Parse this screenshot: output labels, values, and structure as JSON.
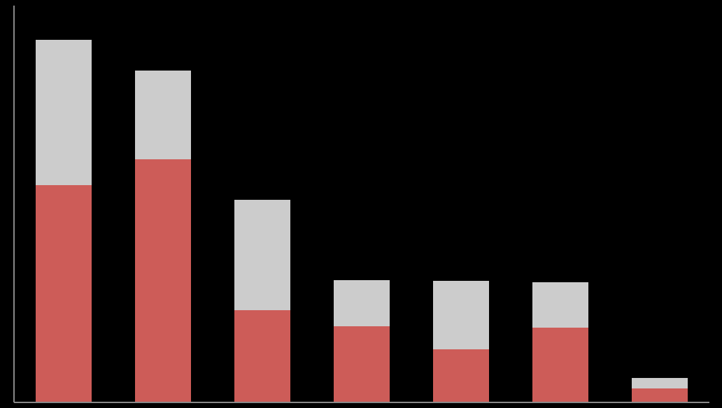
{
  "chart_data": {
    "type": "stacked_bar",
    "categories": [
      null,
      null,
      null,
      null,
      null,
      null,
      null
    ],
    "series": [
      {
        "color": "#cd5c58",
        "values": [
          311,
          348,
          132,
          109,
          76,
          107,
          20
        ]
      },
      {
        "color": "#cccccc",
        "values": [
          208,
          127,
          158,
          66,
          98,
          65,
          15
        ]
      }
    ],
    "ylim": [
      0,
      568
    ]
  }
}
